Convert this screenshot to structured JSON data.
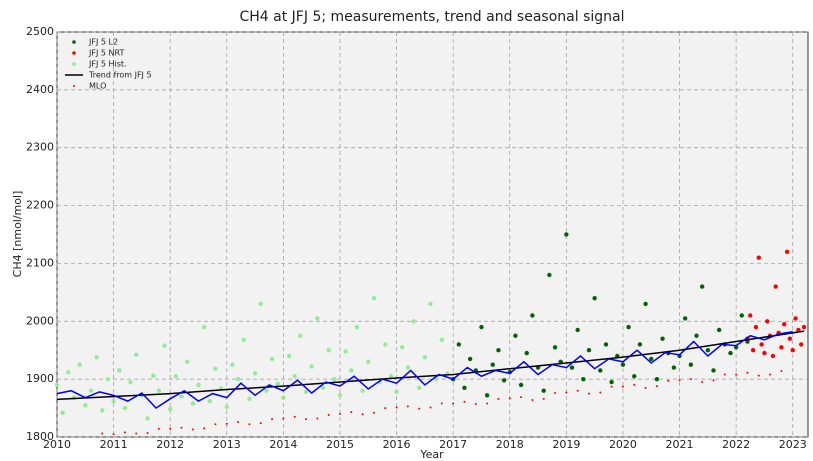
{
  "chart_data": {
    "type": "scatter",
    "title": "CH4 at JFJ 5; measurements, trend and seasonal signal",
    "x_label": "Year",
    "y_label": "CH4 [nmol/mol]",
    "xlim": [
      2010,
      2023.27
    ],
    "ylim": [
      1800,
      2500
    ],
    "xticks": [
      2010,
      2011,
      2012,
      2013,
      2014,
      2015,
      2016,
      2017,
      2018,
      2019,
      2020,
      2021,
      2022,
      2023
    ],
    "yticks": [
      1800,
      1900,
      2000,
      2100,
      2200,
      2300,
      2400,
      2500
    ],
    "grid": true,
    "legend": "upper left",
    "series": [
      {
        "name": "JFJ 5 L2",
        "color": "#006400",
        "kind": "scatter",
        "x": [
          2017.0,
          2017.1,
          2017.2,
          2017.3,
          2017.4,
          2017.5,
          2017.6,
          2017.7,
          2017.8,
          2017.9,
          2018.0,
          2018.1,
          2018.2,
          2018.3,
          2018.4,
          2018.5,
          2018.6,
          2018.7,
          2018.8,
          2018.9,
          2019.0,
          2019.1,
          2019.2,
          2019.3,
          2019.4,
          2019.5,
          2019.6,
          2019.7,
          2019.8,
          2019.9,
          2020.0,
          2020.1,
          2020.2,
          2020.3,
          2020.4,
          2020.5,
          2020.6,
          2020.7,
          2020.8,
          2020.9,
          2021.0,
          2021.1,
          2021.2,
          2021.3,
          2021.4,
          2021.5,
          2021.6,
          2021.7,
          2021.8,
          2021.9,
          2022.0,
          2022.1,
          2022.2
        ],
        "values": [
          1900,
          1960,
          1885,
          1935,
          1915,
          1990,
          1872,
          1925,
          1950,
          1898,
          1912,
          1975,
          1890,
          1945,
          2010,
          1920,
          1880,
          2080,
          1955,
          1930,
          2150,
          1920,
          1985,
          1900,
          1950,
          2040,
          1915,
          1960,
          1895,
          1940,
          1925,
          1990,
          1905,
          1960,
          2030,
          1935,
          1900,
          1970,
          1945,
          1920,
          1940,
          2005,
          1925,
          1975,
          2060,
          1950,
          1915,
          1985,
          1960,
          1945,
          1955,
          2010,
          1965
        ]
      },
      {
        "name": "JFJ 5 NRT",
        "color": "#ff0000",
        "kind": "scatter",
        "x": [
          2022.2,
          2022.25,
          2022.3,
          2022.35,
          2022.4,
          2022.45,
          2022.5,
          2022.55,
          2022.6,
          2022.65,
          2022.7,
          2022.75,
          2022.8,
          2022.85,
          2022.9,
          2022.95,
          2023.0,
          2023.05,
          2023.1,
          2023.15,
          2023.2
        ],
        "values": [
          1970,
          2010,
          1950,
          1990,
          2110,
          1960,
          1945,
          2000,
          1975,
          1940,
          2060,
          1980,
          1955,
          1995,
          2120,
          1970,
          1950,
          2005,
          1985,
          1960,
          1990
        ]
      },
      {
        "name": "JFJ 5 Hist.",
        "color": "#90ee90",
        "kind": "scatter",
        "x": [
          2010.0,
          2010.1,
          2010.2,
          2010.3,
          2010.4,
          2010.5,
          2010.6,
          2010.7,
          2010.8,
          2010.9,
          2011.0,
          2011.1,
          2011.2,
          2011.3,
          2011.4,
          2011.5,
          2011.6,
          2011.7,
          2011.8,
          2011.9,
          2012.0,
          2012.1,
          2012.2,
          2012.3,
          2012.4,
          2012.5,
          2012.6,
          2012.7,
          2012.8,
          2012.9,
          2013.0,
          2013.1,
          2013.2,
          2013.3,
          2013.4,
          2013.5,
          2013.6,
          2013.7,
          2013.8,
          2013.9,
          2014.0,
          2014.1,
          2014.2,
          2014.3,
          2014.4,
          2014.5,
          2014.6,
          2014.7,
          2014.8,
          2014.9,
          2015.0,
          2015.1,
          2015.2,
          2015.3,
          2015.4,
          2015.5,
          2015.6,
          2015.7,
          2015.8,
          2015.9,
          2016.0,
          2016.1,
          2016.2,
          2016.3,
          2016.4,
          2016.5,
          2016.6,
          2016.7,
          2016.8,
          2016.9
        ],
        "values": [
          1890,
          1842,
          1912,
          1868,
          1925,
          1855,
          1880,
          1938,
          1846,
          1900,
          1862,
          1915,
          1850,
          1895,
          1942,
          1872,
          1832,
          1906,
          1880,
          1958,
          1848,
          1905,
          1870,
          1930,
          1858,
          1890,
          1990,
          1862,
          1918,
          1884,
          1852,
          1925,
          1900,
          1968,
          1866,
          1910,
          2030,
          1880,
          1935,
          1892,
          1868,
          1940,
          1905,
          1975,
          1878,
          1922,
          2005,
          1885,
          1950,
          1900,
          1872,
          1948,
          1915,
          1990,
          1880,
          1930,
          2040,
          1895,
          1960,
          1905,
          1878,
          1955,
          1920,
          2000,
          1885,
          1938,
          2030,
          1900,
          1968,
          1910
        ]
      },
      {
        "name": "Trend from JFJ 5",
        "color": "#000000",
        "kind": "line",
        "x": [
          2010,
          2011,
          2012,
          2013,
          2014,
          2015,
          2016,
          2017,
          2018,
          2019,
          2020,
          2021,
          2022,
          2023,
          2023.2
        ],
        "values": [
          1865,
          1870,
          1875,
          1882,
          1888,
          1895,
          1902,
          1908,
          1918,
          1928,
          1938,
          1950,
          1965,
          1980,
          1983
        ]
      },
      {
        "name": "MLO",
        "color": "#ff0000",
        "kind": "dots",
        "x": [
          2010.8,
          2011.0,
          2011.2,
          2011.4,
          2011.6,
          2011.8,
          2012.0,
          2012.2,
          2012.4,
          2012.6,
          2012.8,
          2013.0,
          2013.2,
          2013.4,
          2013.6,
          2013.8,
          2014.0,
          2014.2,
          2014.4,
          2014.6,
          2014.8,
          2015.0,
          2015.2,
          2015.4,
          2015.6,
          2015.8,
          2016.0,
          2016.2,
          2016.4,
          2016.6,
          2016.8,
          2017.0,
          2017.2,
          2017.4,
          2017.6,
          2017.8,
          2018.0,
          2018.2,
          2018.4,
          2018.6,
          2018.8,
          2019.0,
          2019.2,
          2019.4,
          2019.6,
          2019.8,
          2020.0,
          2020.2,
          2020.4,
          2020.6,
          2020.8,
          2021.0,
          2021.2,
          2021.4,
          2021.6,
          2021.8,
          2022.0,
          2022.2,
          2022.4,
          2022.6,
          2022.8
        ],
        "values": [
          1806,
          1805,
          1808,
          1806,
          1807,
          1814,
          1814,
          1816,
          1813,
          1815,
          1822,
          1823,
          1826,
          1822,
          1824,
          1831,
          1832,
          1835,
          1831,
          1832,
          1838,
          1840,
          1843,
          1839,
          1842,
          1850,
          1851,
          1853,
          1849,
          1851,
          1858,
          1858,
          1861,
          1857,
          1858,
          1866,
          1867,
          1869,
          1864,
          1866,
          1876,
          1877,
          1880,
          1875,
          1877,
          1887,
          1887,
          1890,
          1885,
          1888,
          1897,
          1898,
          1900,
          1895,
          1898,
          1908,
          1908,
          1911,
          1906,
          1908,
          1914
        ]
      },
      {
        "color": "#0000ff",
        "kind": "line",
        "x": [
          2010.0,
          2010.25,
          2010.5,
          2010.75,
          2011.0,
          2011.25,
          2011.5,
          2011.75,
          2012.0,
          2012.25,
          2012.5,
          2012.75,
          2013.0,
          2013.25,
          2013.5,
          2013.75,
          2014.0,
          2014.25,
          2014.5,
          2014.75,
          2015.0,
          2015.25,
          2015.5,
          2015.75,
          2016.0,
          2016.25,
          2016.5,
          2016.75,
          2017.0,
          2017.25,
          2017.5,
          2017.75,
          2018.0,
          2018.25,
          2018.5,
          2018.75,
          2019.0,
          2019.25,
          2019.5,
          2019.75,
          2020.0,
          2020.25,
          2020.5,
          2020.75,
          2021.0,
          2021.25,
          2021.5,
          2021.75,
          2022.0,
          2022.25,
          2022.5,
          2022.75,
          2023.0
        ],
        "values": [
          1875,
          1880,
          1868,
          1878,
          1872,
          1862,
          1876,
          1850,
          1866,
          1880,
          1862,
          1875,
          1868,
          1893,
          1872,
          1890,
          1880,
          1898,
          1876,
          1895,
          1888,
          1905,
          1883,
          1900,
          1893,
          1915,
          1890,
          1908,
          1900,
          1920,
          1905,
          1915,
          1910,
          1930,
          1908,
          1925,
          1920,
          1940,
          1918,
          1935,
          1930,
          1950,
          1928,
          1946,
          1942,
          1965,
          1940,
          1960,
          1958,
          1975,
          1968,
          1978,
          1982
        ]
      }
    ]
  }
}
